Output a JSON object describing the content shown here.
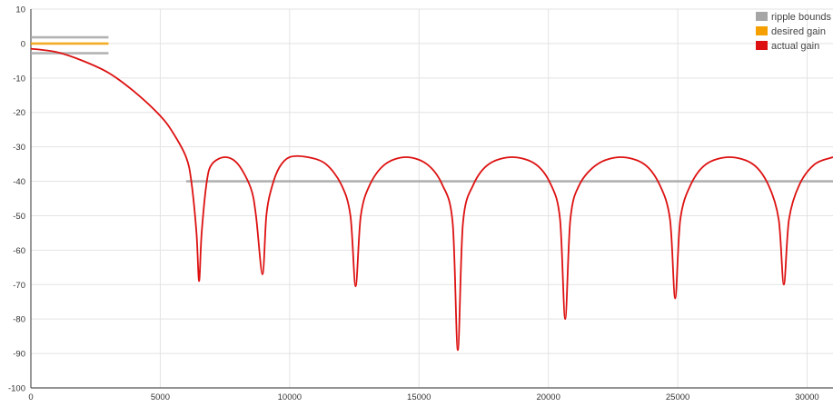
{
  "chart_data": {
    "type": "line",
    "title": "",
    "xlabel": "",
    "ylabel": "",
    "xlim": [
      0,
      31000
    ],
    "ylim": [
      -100,
      10
    ],
    "grid": true,
    "legend_position": "top-right",
    "x_ticks": [
      "0",
      "5000",
      "10000",
      "15000",
      "20000",
      "25000",
      "30000"
    ],
    "y_ticks": [
      "10",
      "0",
      "-10",
      "-20",
      "-30",
      "-40",
      "-50",
      "-60",
      "-70",
      "-80",
      "-90",
      "-100"
    ],
    "legend": [
      {
        "label": "ripple bounds",
        "color": "#a6a6a6"
      },
      {
        "label": "desired gain",
        "color": "#f5a000"
      },
      {
        "label": "actual gain",
        "color": "#dd1111"
      }
    ],
    "series": [
      {
        "name": "ripple bounds",
        "color": "#a6a6a6",
        "segments": [
          {
            "x": [
              0,
              3000
            ],
            "y": [
              1.8,
              1.8
            ]
          },
          {
            "x": [
              0,
              3000
            ],
            "y": [
              -2.8,
              -2.8
            ]
          },
          {
            "x": [
              6000,
              31000
            ],
            "y": [
              -40,
              -40
            ]
          }
        ]
      },
      {
        "name": "desired gain",
        "color": "#f5a000",
        "segments": [
          {
            "x": [
              0,
              3000
            ],
            "y": [
              0,
              0
            ]
          }
        ]
      },
      {
        "name": "actual gain",
        "color": "#dd1111",
        "x": [
          0,
          1000,
          2000,
          3000,
          4000,
          5000,
          5500,
          6000,
          6200,
          6400,
          6500,
          6600,
          6800,
          7000,
          7500,
          8000,
          8500,
          8700,
          8950,
          9100,
          9300,
          9600,
          10000,
          10700,
          11400,
          12000,
          12350,
          12550,
          12750,
          13100,
          13700,
          14500,
          15300,
          15900,
          16300,
          16500,
          16700,
          17100,
          17700,
          18600,
          19500,
          20100,
          20450,
          20650,
          20850,
          21200,
          21900,
          22800,
          23700,
          24300,
          24700,
          24900,
          25100,
          25500,
          26100,
          27000,
          27900,
          28500,
          28900,
          29100,
          29300,
          29700,
          30300,
          31000
        ],
        "y": [
          -1.5,
          -2.5,
          -5,
          -8.5,
          -14,
          -21,
          -26,
          -33,
          -40,
          -55,
          -69,
          -55,
          -40,
          -35,
          -33,
          -35,
          -42,
          -50,
          -67,
          -50,
          -42,
          -36,
          -33,
          -33,
          -35,
          -41,
          -50,
          -70.5,
          -50,
          -41,
          -35,
          -33,
          -35,
          -41,
          -52,
          -89,
          -52,
          -41,
          -35,
          -33,
          -35,
          -41,
          -51,
          -80,
          -51,
          -41,
          -35,
          -33,
          -35,
          -41,
          -51,
          -74,
          -51,
          -41,
          -35,
          -33,
          -35,
          -41,
          -51,
          -70,
          -51,
          -41,
          -35,
          -33
        ]
      }
    ]
  }
}
